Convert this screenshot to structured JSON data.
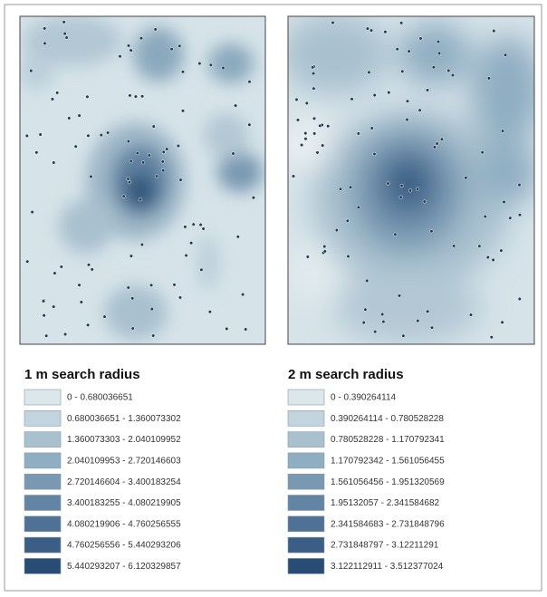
{
  "maps": [
    {
      "title": "1 m search radius",
      "legend": [
        {
          "label": "0 - 0.680036651",
          "color": "#dbe7eb"
        },
        {
          "label": "0.680036651 - 1.360073302",
          "color": "#c2d4dd"
        },
        {
          "label": "1.360073303 - 2.040109952",
          "color": "#a9c1cf"
        },
        {
          "label": "2.040109953 - 2.720146603",
          "color": "#90aec2"
        },
        {
          "label": "2.720146604 - 3.400183254",
          "color": "#7999b2"
        },
        {
          "label": "3.400183255 - 4.080219905",
          "color": "#6385a3"
        },
        {
          "label": "4.080219906 - 4.760256555",
          "color": "#4e7195"
        },
        {
          "label": "4.760256556 - 5.440293206",
          "color": "#3a5e86"
        },
        {
          "label": "5.440293207 - 6.120329857",
          "color": "#284c74"
        }
      ]
    },
    {
      "title": "2 m search radius",
      "legend": [
        {
          "label": "0 - 0.390264114",
          "color": "#dbe7eb"
        },
        {
          "label": "0.390264114 - 0.780528228",
          "color": "#c2d4dd"
        },
        {
          "label": "0.780528228 - 1.170792341",
          "color": "#a9c1cf"
        },
        {
          "label": "1.170792342 - 1.561056455",
          "color": "#90aec2"
        },
        {
          "label": "1.561056456 - 1.951320569",
          "color": "#7999b2"
        },
        {
          "label": "1.95132057 - 2.341584682",
          "color": "#6385a3"
        },
        {
          "label": "2.341584683 - 2.731848796",
          "color": "#4e7195"
        },
        {
          "label": "2.731848797 - 3.12211291",
          "color": "#3a5e86"
        },
        {
          "label": "3.122112911 - 3.512377024",
          "color": "#284c74"
        }
      ]
    }
  ]
}
